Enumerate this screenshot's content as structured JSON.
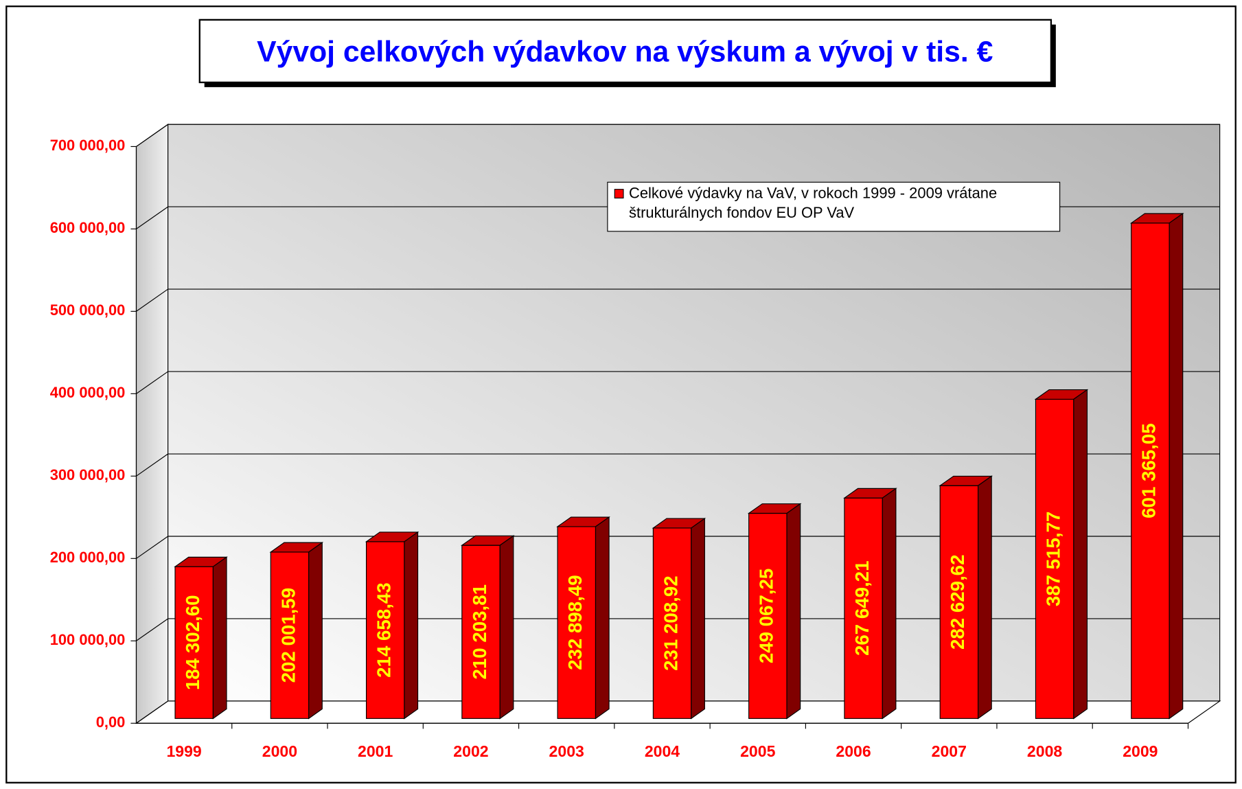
{
  "chart_data": {
    "type": "bar",
    "title": "Vývoj celkových výdavkov na výskum a vývoj v tis. €",
    "categories": [
      "1999",
      "2000",
      "2001",
      "2002",
      "2003",
      "2004",
      "2005",
      "2006",
      "2007",
      "2008",
      "2009"
    ],
    "series": [
      {
        "name": "Celkové výdavky na VaV, v rokoch 1999 - 2009 vrátane štrukturálnych fondov EU OP VaV",
        "color": "#ff0000",
        "values": [
          184302.6,
          202001.59,
          214658.43,
          210203.81,
          232898.49,
          231208.92,
          249067.25,
          267649.21,
          282629.62,
          387515.77,
          601365.05
        ],
        "value_labels": [
          "184 302,60",
          "202 001,59",
          "214 658,43",
          "210 203,81",
          "232 898,49",
          "231 208,92",
          "249 067,25",
          "267 649,21",
          "282 629,62",
          "387 515,77",
          "601 365,05"
        ]
      }
    ],
    "ylim": [
      0,
      700000
    ],
    "yticks": [
      {
        "value": 0,
        "label": "0,00"
      },
      {
        "value": 100000,
        "label": "100 000,00"
      },
      {
        "value": 200000,
        "label": "200 000,00"
      },
      {
        "value": 300000,
        "label": "300 000,00"
      },
      {
        "value": 400000,
        "label": "400 000,00"
      },
      {
        "value": 500000,
        "label": "500 000,00"
      },
      {
        "value": 600000,
        "label": "600 000,00"
      },
      {
        "value": 700000,
        "label": "700 000,00"
      }
    ],
    "grid": true,
    "legend": "top-right"
  }
}
